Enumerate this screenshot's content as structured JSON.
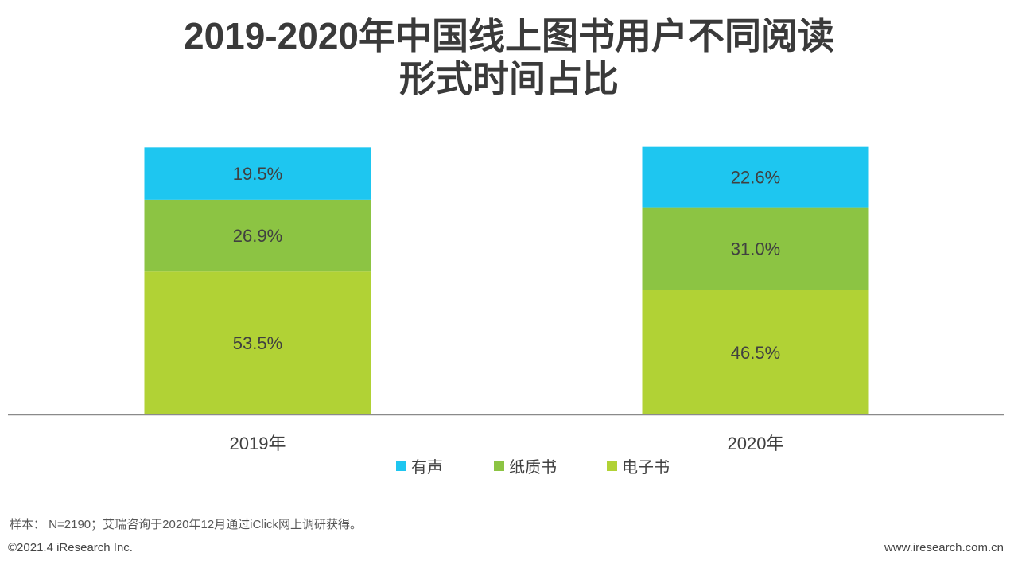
{
  "title_line1": "2019-2020年中国线上图书用户不同阅读",
  "title_line2": "形式时间占比",
  "chart_data": {
    "type": "bar",
    "stacked": true,
    "percent": true,
    "categories": [
      "2019年",
      "2020年"
    ],
    "series": [
      {
        "name": "电子书",
        "values": [
          53.5,
          46.5
        ],
        "color": "#b1d235"
      },
      {
        "name": "纸质书",
        "values": [
          26.9,
          31.0
        ],
        "color": "#8cc443"
      },
      {
        "name": "有声",
        "values": [
          19.5,
          22.6
        ],
        "color": "#1ec6f0"
      }
    ],
    "value_labels": [
      [
        "53.5%",
        "46.5%"
      ],
      [
        "26.9%",
        "31.0%"
      ],
      [
        "19.5%",
        "22.6%"
      ]
    ],
    "ylim": [
      0,
      100
    ],
    "grid": false,
    "legend_position": "bottom"
  },
  "legend": [
    {
      "label": "有声",
      "color": "#1ec6f0"
    },
    {
      "label": "纸质书",
      "color": "#8cc443"
    },
    {
      "label": "电子书",
      "color": "#b1d235"
    }
  ],
  "note": "样本： N=2190；艾瑞咨询于2020年12月通过iClick网上调研获得。",
  "footer_left": "©2021.4 iResearch Inc.",
  "footer_right": "www.iresearch.com.cn"
}
